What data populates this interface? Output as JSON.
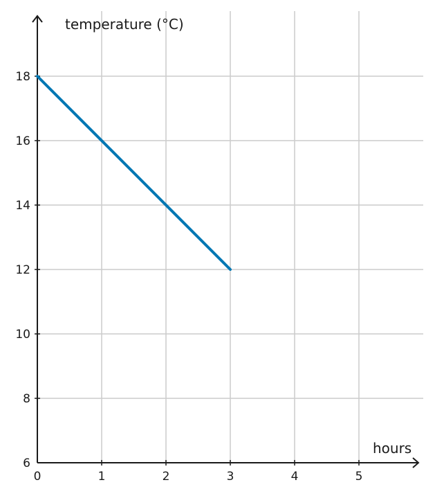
{
  "chart_data": {
    "type": "line",
    "xlabel": "hours",
    "ylabel": "temperature (°C)",
    "xlim": [
      0,
      5
    ],
    "ylim": [
      6,
      18
    ],
    "x_ticks": [
      "0",
      "1",
      "2",
      "3",
      "4",
      "5"
    ],
    "y_ticks": [
      "6",
      "8",
      "10",
      "12",
      "14",
      "16",
      "18"
    ],
    "grid": true,
    "series": [
      {
        "x": [
          0,
          3
        ],
        "y": [
          18,
          12
        ],
        "color": "#0077b3"
      }
    ]
  }
}
